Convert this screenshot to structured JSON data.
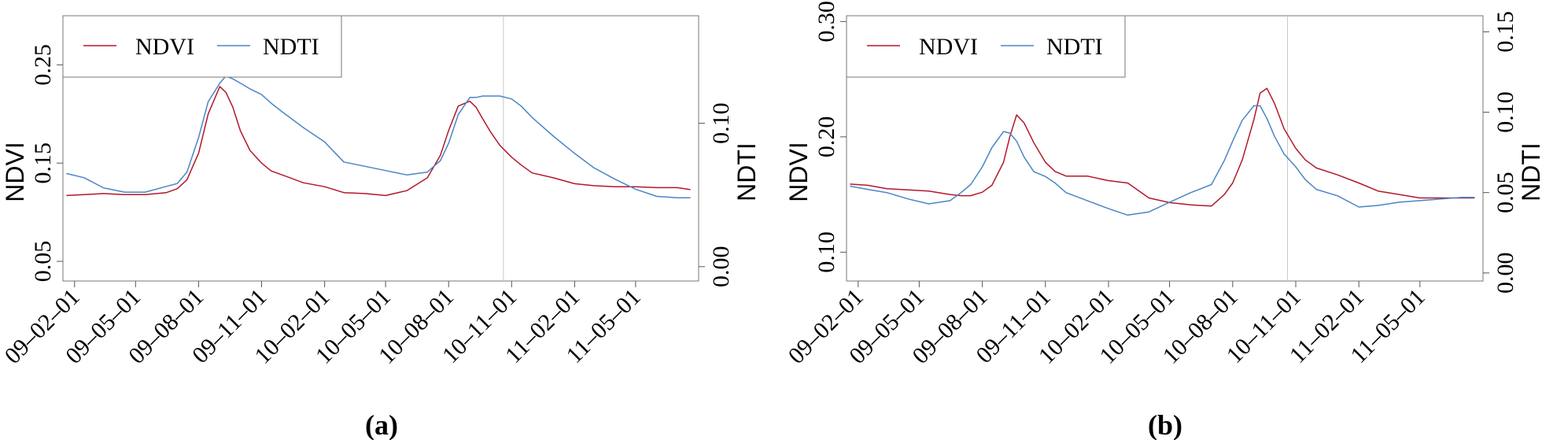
{
  "figure": {
    "panels": [
      {
        "caption": "(a)",
        "ylabel_left": "NDVI",
        "ylabel_right": "NDTI",
        "left_ticks": [
          "0.05",
          "0.15",
          "0.25"
        ],
        "right_ticks": [
          "0.00",
          "0.10"
        ],
        "x_ticks": [
          "09–02–01",
          "09–05–01",
          "09–08–01",
          "09–11–01",
          "10–02–01",
          "10–05–01",
          "10–08–01",
          "10–11–01",
          "11–02–01",
          "11–05–01"
        ],
        "legend": [
          "NDVI",
          "NDTI"
        ]
      },
      {
        "caption": "(b)",
        "ylabel_left": "NDVI",
        "ylabel_right": "NDTI",
        "left_ticks": [
          "0.10",
          "0.20",
          "0.30"
        ],
        "right_ticks": [
          "0.00",
          "0.05",
          "0.10",
          "0.15"
        ],
        "x_ticks": [
          "09–02–01",
          "09–05–01",
          "09–08–01",
          "09–11–01",
          "10–02–01",
          "10–05–01",
          "10–08–01",
          "10–11–01",
          "11–02–01",
          "11–05–01"
        ],
        "legend": [
          "NDVI",
          "NDTI"
        ]
      }
    ]
  },
  "chart_data": [
    {
      "type": "line",
      "title": "",
      "xlabel": "",
      "ylabel": "NDVI",
      "y2label": "NDTI",
      "x_axis": "date",
      "xlim": [
        "2009-01-15",
        "2011-08-01"
      ],
      "ylim": [
        0.03,
        0.3
      ],
      "y2lim": [
        -0.01,
        0.175
      ],
      "grid": false,
      "legend_position": "top-left",
      "vline": "2010-10-20",
      "colors": {
        "NDVI": "#b2182b",
        "NDTI": "#4a86c5"
      },
      "x": [
        "2009-01-20",
        "2009-02-15",
        "2009-03-15",
        "2009-04-15",
        "2009-05-15",
        "2009-06-15",
        "2009-07-01",
        "2009-07-15",
        "2009-08-01",
        "2009-08-15",
        "2009-09-01",
        "2009-09-10",
        "2009-09-20",
        "2009-10-01",
        "2009-10-15",
        "2009-11-01",
        "2009-11-15",
        "2009-12-01",
        "2010-01-01",
        "2010-02-01",
        "2010-03-01",
        "2010-04-01",
        "2010-05-01",
        "2010-06-01",
        "2010-07-01",
        "2010-07-20",
        "2010-08-01",
        "2010-08-15",
        "2010-09-01",
        "2010-09-10",
        "2010-09-20",
        "2010-10-01",
        "2010-10-15",
        "2010-11-01",
        "2010-11-15",
        "2010-12-01",
        "2011-01-01",
        "2011-02-01",
        "2011-03-01",
        "2011-04-01",
        "2011-05-01",
        "2011-06-01",
        "2011-07-01",
        "2011-07-20"
      ],
      "series": [
        {
          "name": "NDVI",
          "axis": "left",
          "values": [
            0.117,
            0.118,
            0.119,
            0.118,
            0.118,
            0.12,
            0.124,
            0.133,
            0.16,
            0.2,
            0.228,
            0.222,
            0.207,
            0.183,
            0.163,
            0.15,
            0.142,
            0.138,
            0.13,
            0.126,
            0.12,
            0.119,
            0.117,
            0.122,
            0.135,
            0.158,
            0.183,
            0.208,
            0.213,
            0.207,
            0.195,
            0.182,
            0.168,
            0.156,
            0.148,
            0.14,
            0.135,
            0.129,
            0.127,
            0.126,
            0.126,
            0.125,
            0.125,
            0.123
          ]
        },
        {
          "name": "NDTI",
          "axis": "right",
          "values": [
            0.065,
            0.062,
            0.055,
            0.052,
            0.052,
            0.056,
            0.058,
            0.066,
            0.09,
            0.115,
            0.128,
            0.133,
            0.131,
            0.128,
            0.124,
            0.12,
            0.114,
            0.108,
            0.097,
            0.087,
            0.073,
            0.07,
            0.067,
            0.064,
            0.066,
            0.074,
            0.086,
            0.106,
            0.118,
            0.118,
            0.119,
            0.119,
            0.119,
            0.117,
            0.112,
            0.104,
            0.091,
            0.079,
            0.069,
            0.061,
            0.054,
            0.049,
            0.048,
            0.048
          ]
        }
      ]
    },
    {
      "type": "line",
      "title": "",
      "xlabel": "",
      "ylabel": "NDVI",
      "y2label": "NDTI",
      "x_axis": "date",
      "xlim": [
        "2009-01-15",
        "2011-08-01"
      ],
      "ylim": [
        0.075,
        0.305
      ],
      "y2lim": [
        -0.005,
        0.16
      ],
      "grid": false,
      "legend_position": "top-left",
      "vline": "2010-10-20",
      "colors": {
        "NDVI": "#b2182b",
        "NDTI": "#4a86c5"
      },
      "x": [
        "2009-01-20",
        "2009-02-15",
        "2009-03-15",
        "2009-04-15",
        "2009-05-15",
        "2009-06-15",
        "2009-07-01",
        "2009-07-15",
        "2009-08-01",
        "2009-08-15",
        "2009-09-01",
        "2009-09-10",
        "2009-09-20",
        "2009-10-01",
        "2009-10-15",
        "2009-11-01",
        "2009-11-15",
        "2009-12-01",
        "2010-01-01",
        "2010-02-01",
        "2010-03-01",
        "2010-04-01",
        "2010-05-01",
        "2010-06-01",
        "2010-07-01",
        "2010-07-20",
        "2010-08-01",
        "2010-08-15",
        "2010-09-01",
        "2010-09-10",
        "2010-09-20",
        "2010-10-01",
        "2010-10-15",
        "2010-11-01",
        "2010-11-15",
        "2010-12-01",
        "2011-01-01",
        "2011-02-01",
        "2011-03-01",
        "2011-04-01",
        "2011-05-01",
        "2011-06-01",
        "2011-07-01",
        "2011-07-20"
      ],
      "series": [
        {
          "name": "NDVI",
          "axis": "left",
          "values": [
            0.159,
            0.158,
            0.155,
            0.154,
            0.153,
            0.15,
            0.149,
            0.149,
            0.152,
            0.158,
            0.178,
            0.2,
            0.219,
            0.212,
            0.195,
            0.178,
            0.17,
            0.166,
            0.166,
            0.162,
            0.16,
            0.147,
            0.143,
            0.141,
            0.14,
            0.15,
            0.16,
            0.18,
            0.215,
            0.238,
            0.242,
            0.229,
            0.207,
            0.19,
            0.18,
            0.173,
            0.167,
            0.16,
            0.153,
            0.15,
            0.147,
            0.147,
            0.147,
            0.147
          ]
        },
        {
          "name": "NDTI",
          "axis": "right",
          "values": [
            0.054,
            0.052,
            0.05,
            0.046,
            0.043,
            0.045,
            0.05,
            0.055,
            0.066,
            0.078,
            0.088,
            0.087,
            0.082,
            0.072,
            0.063,
            0.06,
            0.056,
            0.05,
            0.045,
            0.04,
            0.036,
            0.038,
            0.044,
            0.05,
            0.055,
            0.07,
            0.082,
            0.095,
            0.104,
            0.104,
            0.096,
            0.085,
            0.074,
            0.066,
            0.058,
            0.052,
            0.048,
            0.041,
            0.042,
            0.044,
            0.045,
            0.046,
            0.047,
            0.047
          ]
        }
      ]
    }
  ]
}
